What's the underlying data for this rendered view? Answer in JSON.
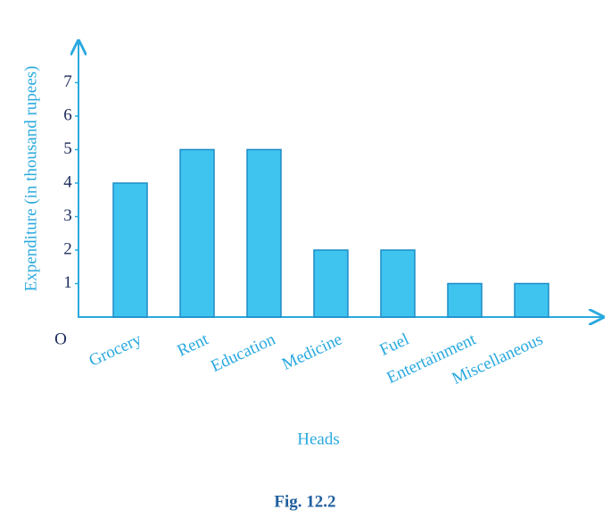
{
  "chart_data": {
    "type": "bar",
    "caption": "Fig. 12.2",
    "x_label": "Heads",
    "y_label": "Expenditure (in thousand rupees)",
    "origin_label": "O",
    "categories": [
      "Grocery",
      "Rent",
      "Education",
      "Medicine",
      "Fuel",
      "Entertainment",
      "Miscellaneous"
    ],
    "values": [
      4,
      5,
      5,
      2,
      2,
      1,
      1
    ],
    "color": "#3fc4f0",
    "ylim": [
      0,
      8
    ],
    "yticks": [
      1,
      2,
      3,
      4,
      5,
      6,
      7
    ],
    "grid": false
  }
}
